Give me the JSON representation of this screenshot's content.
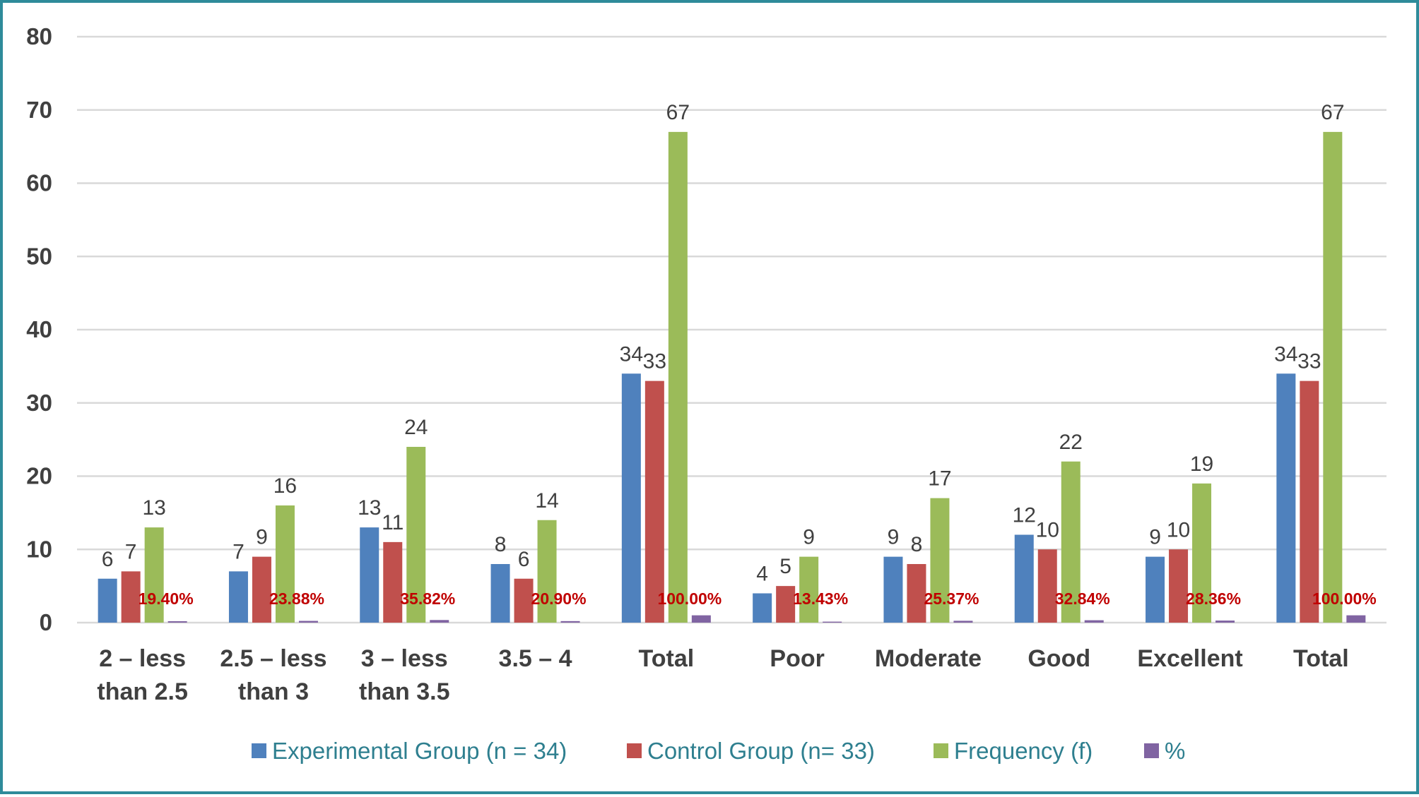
{
  "chart_data": {
    "type": "bar",
    "categories": [
      [
        "2 – less",
        "than 2.5"
      ],
      [
        "2.5 – less",
        "than 3"
      ],
      [
        "3 – less",
        "than 3.5"
      ],
      [
        "3.5 – 4"
      ],
      [
        "Total"
      ],
      [
        "Poor"
      ],
      [
        "Moderate"
      ],
      [
        "Good"
      ],
      [
        "Excellent"
      ],
      [
        "Total"
      ]
    ],
    "series": [
      {
        "name": "Experimental Group (n = 34)",
        "color": "#4f81bd",
        "values": [
          6,
          7,
          13,
          8,
          34,
          4,
          9,
          12,
          9,
          34
        ],
        "labels": [
          "6",
          "7",
          "13",
          "8",
          "34",
          "4",
          "9",
          "12",
          "9",
          "34"
        ]
      },
      {
        "name": "Control Group (n= 33)",
        "color": "#c0504d",
        "values": [
          7,
          9,
          11,
          6,
          33,
          5,
          8,
          10,
          10,
          33
        ],
        "labels": [
          "7",
          "9",
          "11",
          "6",
          "33",
          "5",
          "8",
          "10",
          "10",
          "33"
        ]
      },
      {
        "name": "Frequency (f)",
        "color": "#9bbb59",
        "values": [
          13,
          16,
          24,
          14,
          67,
          9,
          17,
          22,
          19,
          67
        ],
        "labels": [
          "13",
          "16",
          "24",
          "14",
          "67",
          "9",
          "17",
          "22",
          "19",
          "67"
        ]
      },
      {
        "name": "%",
        "color": "#8064a2",
        "values": [
          0.194,
          0.2388,
          0.3582,
          0.209,
          1.0,
          0.1343,
          0.2537,
          0.3284,
          0.2836,
          1.0
        ],
        "labels": [
          "19.40%",
          "23.88%",
          "35.82%",
          "20.90%",
          "100.00%",
          "13.43%",
          "25.37%",
          "32.84%",
          "28.36%",
          "100.00%"
        ]
      }
    ],
    "ylim": [
      0,
      80
    ],
    "yticks": [
      0,
      10,
      20,
      30,
      40,
      50,
      60,
      70,
      80
    ],
    "grid": true,
    "legend_position": "bottom"
  }
}
